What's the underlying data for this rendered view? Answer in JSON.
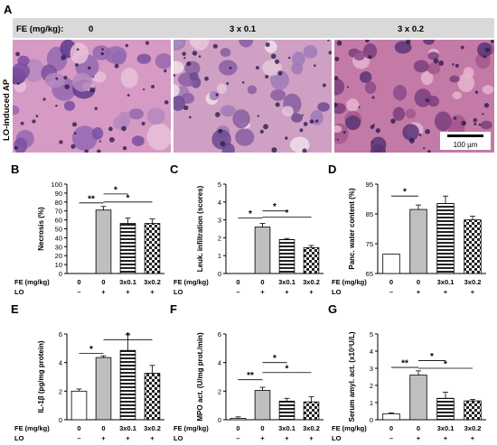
{
  "figure": {
    "panel_A": {
      "letter": "A",
      "fe_label": "FE (mg/kg):",
      "doses": [
        "0",
        "3 x 0.1",
        "3 x 0.2"
      ],
      "side_label": "LO-induced AP",
      "scale_bar_label": "100 µm"
    }
  },
  "colors": {
    "control_bar": "#ffffff",
    "lo_bar": "#bfbfbf",
    "stripe": "#000000",
    "histo_base": "#c98bb5",
    "histo_purple": "#6b3f8e",
    "header_gray": "#d9d9d9"
  },
  "chart_data": [
    {
      "id": "B",
      "letter": "B",
      "type": "bar",
      "ylabel": "Necrosis (%)",
      "ylim": [
        0,
        100
      ],
      "yticks": [
        0,
        10,
        20,
        30,
        40,
        50,
        60,
        70,
        80,
        90,
        100
      ],
      "fe_values": [
        "0",
        "0",
        "3x0.1",
        "3x0.2"
      ],
      "lo_values": [
        "–",
        "+",
        "+",
        "+"
      ],
      "values": [
        0,
        71,
        56,
        56
      ],
      "errors": [
        0,
        4,
        6,
        5
      ],
      "fills": [
        "white",
        "gray",
        "stripe",
        "checker"
      ],
      "significance": [
        {
          "from": 0,
          "to": 1,
          "label": "**",
          "y": 79
        },
        {
          "from": 1,
          "to": 2,
          "label": "*",
          "y": 89
        },
        {
          "from": 1,
          "to": 3,
          "label": "*",
          "y": 80
        }
      ]
    },
    {
      "id": "C",
      "letter": "C",
      "type": "bar",
      "ylabel": "Leuk. infiltration (scores)",
      "ylim": [
        0,
        5
      ],
      "yticks": [
        0,
        1,
        2,
        3,
        4,
        5
      ],
      "fe_values": [
        "0",
        "0",
        "3x0.1",
        "3x0.2"
      ],
      "lo_values": [
        "–",
        "+",
        "+",
        "+"
      ],
      "values": [
        0,
        2.6,
        1.9,
        1.45
      ],
      "errors": [
        0,
        0.2,
        0.06,
        0.12
      ],
      "fills": [
        "white",
        "gray",
        "stripe",
        "checker"
      ],
      "significance": [
        {
          "from": 0,
          "to": 1,
          "label": "*",
          "y": 3.1
        },
        {
          "from": 1,
          "to": 2,
          "label": "*",
          "y": 3.5
        },
        {
          "from": 1,
          "to": 3,
          "label": "*",
          "y": 3.15
        }
      ]
    },
    {
      "id": "D",
      "letter": "D",
      "type": "bar",
      "ylabel": "Panc. water content (%)",
      "ylim": [
        65,
        95
      ],
      "yticks": [
        65,
        75,
        85,
        95
      ],
      "fe_values": [
        "0",
        "0",
        "3x0.1",
        "3x0.2"
      ],
      "lo_values": [
        "–",
        "+",
        "+",
        "+"
      ],
      "values": [
        71.5,
        86.5,
        88.5,
        83
      ],
      "errors": [
        0,
        1.5,
        2.5,
        1.2
      ],
      "fills": [
        "white",
        "gray",
        "stripe",
        "checker"
      ],
      "significance": [
        {
          "from": 0,
          "to": 1,
          "label": "*",
          "y": 91
        }
      ]
    },
    {
      "id": "E",
      "letter": "E",
      "type": "bar",
      "ylabel": "IL-1β (pg/mg protein)",
      "ylim": [
        0,
        6
      ],
      "yticks": [
        0,
        2,
        4,
        6
      ],
      "fe_values": [
        "0",
        "0",
        "3x0.1",
        "3x0.2"
      ],
      "lo_values": [
        "–",
        "+",
        "+",
        "+"
      ],
      "values": [
        2.0,
        4.35,
        4.85,
        3.25
      ],
      "errors": [
        0.15,
        0.12,
        1.1,
        0.55
      ],
      "fills": [
        "white",
        "gray",
        "stripe",
        "checker"
      ],
      "significance": [
        {
          "from": 0,
          "to": 1,
          "label": "*",
          "y": 4.65
        },
        {
          "from": 1,
          "to": 3,
          "label": "*",
          "y": 5.6
        }
      ]
    },
    {
      "id": "F",
      "letter": "F",
      "type": "bar",
      "ylabel": "MPO act. (U/mg prot./min)",
      "ylim": [
        0,
        6
      ],
      "yticks": [
        0,
        2,
        4,
        6
      ],
      "fe_values": [
        "0",
        "0",
        "3x0.1",
        "3x0.2"
      ],
      "lo_values": [
        "–",
        "+",
        "+",
        "+"
      ],
      "values": [
        0.1,
        2.05,
        1.3,
        1.25
      ],
      "errors": [
        0.1,
        0.22,
        0.2,
        0.35
      ],
      "fills": [
        "white",
        "gray",
        "stripe",
        "checker"
      ],
      "significance": [
        {
          "from": 0,
          "to": 1,
          "label": "**",
          "y": 2.8
        },
        {
          "from": 1,
          "to": 2,
          "label": "*",
          "y": 4.0
        },
        {
          "from": 1,
          "to": 3,
          "label": "*",
          "y": 3.3
        }
      ]
    },
    {
      "id": "G",
      "letter": "G",
      "type": "bar",
      "ylabel": "Serum amyl. act. (x10³U/L)",
      "ylim": [
        0,
        5
      ],
      "yticks": [
        0,
        1,
        2,
        3,
        4,
        5
      ],
      "fe_values": [
        "0",
        "0",
        "3x0.1",
        "3x0.2"
      ],
      "lo_values": [
        "–",
        "+",
        "+",
        "+"
      ],
      "values": [
        0.35,
        2.6,
        1.25,
        1.1
      ],
      "errors": [
        0.05,
        0.25,
        0.35,
        0.08
      ],
      "fills": [
        "white",
        "gray",
        "stripe",
        "checker"
      ],
      "significance": [
        {
          "from": 0,
          "to": 1,
          "label": "**",
          "y": 3.05
        },
        {
          "from": 1,
          "to": 2,
          "label": "*",
          "y": 3.45
        },
        {
          "from": 1,
          "to": 3,
          "label": "*",
          "y": 3.0
        }
      ]
    }
  ],
  "row_labels": {
    "fe": "FE (mg/kg)",
    "lo": "LO"
  }
}
